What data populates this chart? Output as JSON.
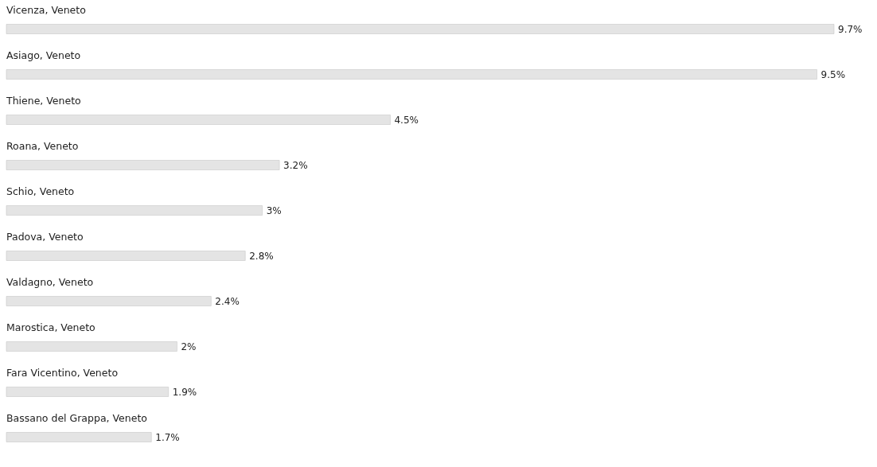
{
  "chart_data": {
    "type": "bar",
    "orientation": "horizontal",
    "color": "#e4e4e4",
    "categories": [
      "Vicenza, Veneto",
      "Asiago, Veneto",
      "Thiene, Veneto",
      "Roana, Veneto",
      "Schio, Veneto",
      "Padova, Veneto",
      "Valdagno, Veneto",
      "Marostica, Veneto",
      "Fara Vicentino, Veneto",
      "Bassano del Grappa, Veneto"
    ],
    "values": [
      9.7,
      9.5,
      4.5,
      3.2,
      3,
      2.8,
      2.4,
      2,
      1.9,
      1.7
    ],
    "value_labels": [
      "9.7%",
      "9.5%",
      "4.5%",
      "3.2%",
      "3%",
      "2.8%",
      "2.4%",
      "2%",
      "1.9%",
      "1.7%"
    ]
  }
}
